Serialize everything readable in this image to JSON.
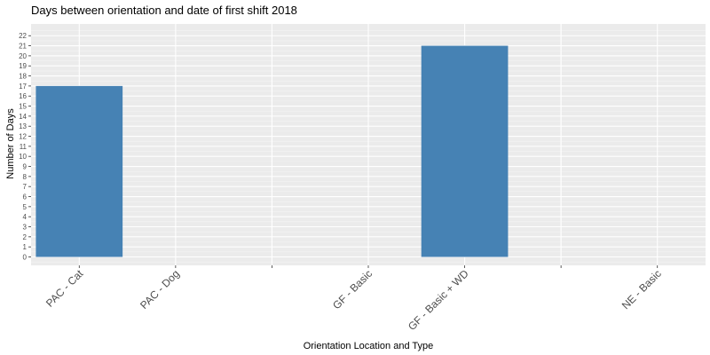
{
  "chart_data": {
    "type": "bar",
    "title": "Days between orientation and date of first shift 2018",
    "xlabel": "Orientation Location and Type",
    "ylabel": "Number of Days",
    "ylim": [
      -1,
      23
    ],
    "yticks": [
      0,
      1,
      2,
      3,
      4,
      5,
      6,
      7,
      8,
      9,
      10,
      11,
      12,
      13,
      14,
      15,
      16,
      17,
      18,
      19,
      20,
      21,
      22
    ],
    "categories": [
      "PAC - Cat",
      "PAC - Dog",
      "",
      "GF - Basic",
      "GF - Basic + WD",
      "",
      "NE - Basic"
    ],
    "values": [
      17,
      null,
      null,
      null,
      21,
      null,
      null
    ],
    "bar_color": "#4682B4",
    "panel_color": "#EBEBEB",
    "grid": true,
    "legend": "none"
  }
}
